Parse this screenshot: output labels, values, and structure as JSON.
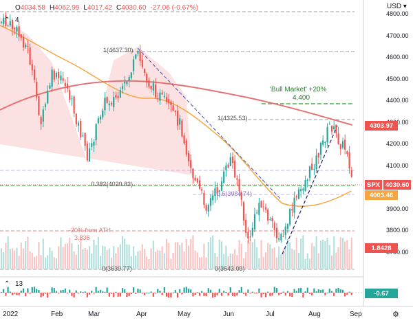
{
  "header": {
    "open_label": "O",
    "open": "4034.58",
    "high_label": "H",
    "high": "4062.99",
    "low_label": "L",
    "low": "4017.42",
    "close_label": "C",
    "close": "4030.60",
    "change": "-27.06 (-0.67%)",
    "collapse_icon": "chevron-up-icon",
    "indicator_count": "4",
    "currency": "USD"
  },
  "price_axis": {
    "ticks": [
      "4800.00",
      "4700.00",
      "4600.00",
      "4500.00",
      "4400.00",
      "4300.00",
      "4200.00",
      "4100.00",
      "4000.00",
      "3900.00",
      "3800.00",
      "3700.00"
    ]
  },
  "price_tags": [
    {
      "label": "4303.97",
      "color": "#ef5350"
    },
    {
      "label": "SPX",
      "color": "#ef5350"
    },
    {
      "label": "4030.60",
      "color": "#ef5350"
    },
    {
      "label": "4003.46",
      "color": "#f7a541"
    },
    {
      "label": "1.8428",
      "color": "#ef5350"
    }
  ],
  "annotations": {
    "fib_1": "1(4637.30)",
    "fib_2": "1(4325.53)",
    "fib_382": "0.382(4020.83)",
    "fib_05": "0.5(3984.74)",
    "fib_0a": "0(3639.77)",
    "fib_0b": "0(3643.09)",
    "bull_title": "'Bull Market' +20%",
    "bull_value": "4,400",
    "bear_title": "-20% from ATH",
    "bear_value": "3,836"
  },
  "lower_pane": {
    "indicator_count": "13",
    "value": "-0.67",
    "value_color": "#26a69a"
  },
  "x_axis": {
    "labels": [
      "2022",
      "Feb",
      "Mar",
      "Apr",
      "May",
      "Jun",
      "Jul",
      "Aug",
      "Sep"
    ]
  },
  "settings_icon": "gear-icon",
  "colors": {
    "up": "#26a69a",
    "down": "#ef5350",
    "ma_short": "#f7a541",
    "ma_long": "#e57373",
    "bull_line": "#4caf50",
    "trend_line": "#3f51b5"
  },
  "chart_data": {
    "type": "line",
    "title": "",
    "xlabel": "",
    "ylabel": "",
    "ylim": [
      3650,
      4850
    ],
    "x": [
      "Jan",
      "Feb",
      "Mar",
      "Apr",
      "May",
      "Jun",
      "Jul",
      "Aug",
      "Sep"
    ],
    "series": [
      {
        "name": "SPX",
        "values": [
          4796,
          4500,
          4200,
          4540,
          4150,
          3900,
          3800,
          4280,
          4030
        ]
      },
      {
        "values": [
          4650,
          4560,
          4430,
          4380,
          4260,
          4060,
          3900,
          3960,
          4003
        ]
      },
      {
        "values": [
          4500,
          4540,
          4560,
          4530,
          4480,
          4430,
          4370,
          4330,
          4304
        ]
      }
    ],
    "levels": [
      {
        "name": "Bull Market +20%",
        "value": 4400
      },
      {
        "name": "-20% from ATH",
        "value": 3836
      },
      {
        "name": "0.382",
        "value": 4020.83
      },
      {
        "name": "0.5",
        "value": 3984.74
      }
    ]
  }
}
